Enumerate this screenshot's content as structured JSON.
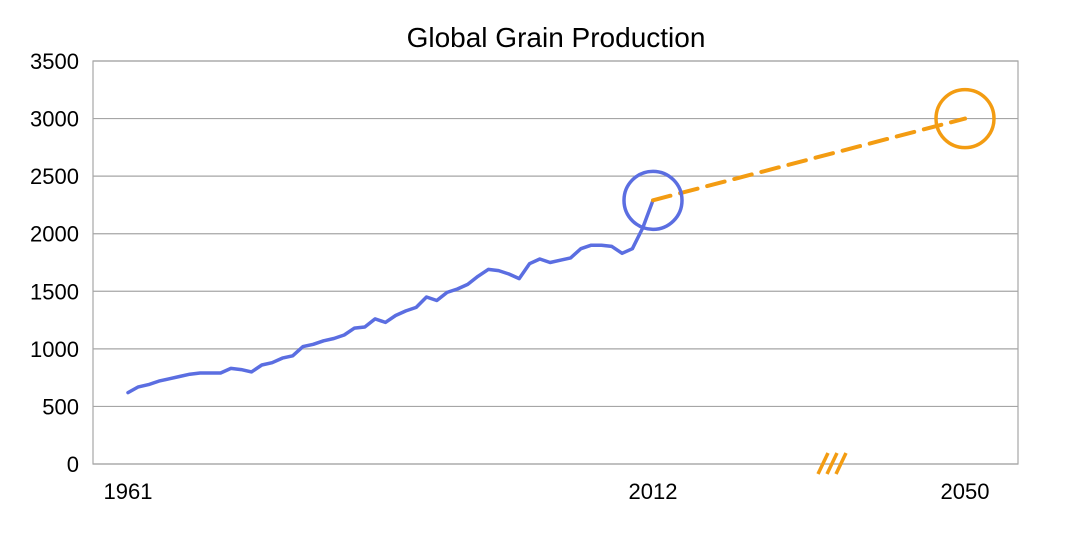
{
  "chart_data": {
    "type": "line",
    "title": "Global Grain Production",
    "xlabel": "",
    "ylabel": "",
    "ylim": [
      0,
      3500
    ],
    "y_ticks": [
      0,
      500,
      1000,
      1500,
      2000,
      2500,
      3000,
      3500
    ],
    "x_tick_labels": [
      "1961",
      "2012",
      "2050"
    ],
    "x_range": [
      1961,
      2050
    ],
    "grid": true,
    "axis_break_marker": "///",
    "colors": {
      "historical": "#5b6ee1",
      "projection": "#f39c12",
      "grid": "#a6a6a6"
    },
    "series": [
      {
        "style": "solid",
        "x": [
          1961,
          1962,
          1963,
          1964,
          1965,
          1966,
          1967,
          1968,
          1969,
          1970,
          1971,
          1972,
          1973,
          1974,
          1975,
          1976,
          1977,
          1978,
          1979,
          1980,
          1981,
          1982,
          1983,
          1984,
          1985,
          1986,
          1987,
          1988,
          1989,
          1990,
          1991,
          1992,
          1993,
          1994,
          1995,
          1996,
          1997,
          1998,
          1999,
          2000,
          2001,
          2002,
          2003,
          2004,
          2005,
          2006,
          2007,
          2008,
          2009,
          2010,
          2011,
          2012
        ],
        "y": [
          620,
          670,
          690,
          720,
          740,
          760,
          780,
          790,
          790,
          790,
          830,
          820,
          800,
          860,
          880,
          920,
          940,
          1020,
          1040,
          1070,
          1090,
          1120,
          1180,
          1190,
          1260,
          1230,
          1290,
          1330,
          1360,
          1450,
          1420,
          1490,
          1520,
          1560,
          1630,
          1690,
          1680,
          1650,
          1610,
          1740,
          1780,
          1750,
          1770,
          1790,
          1870,
          1900,
          1900,
          1890,
          1830,
          1870,
          2050,
          2290
        ]
      },
      {
        "style": "dashed",
        "x": [
          2012,
          2050
        ],
        "y": [
          2290,
          3000
        ]
      }
    ],
    "highlights": [
      {
        "x": 2012,
        "y": 2290,
        "color": "#5b6ee1"
      },
      {
        "x": 2050,
        "y": 3000,
        "color": "#f39c12"
      }
    ]
  }
}
